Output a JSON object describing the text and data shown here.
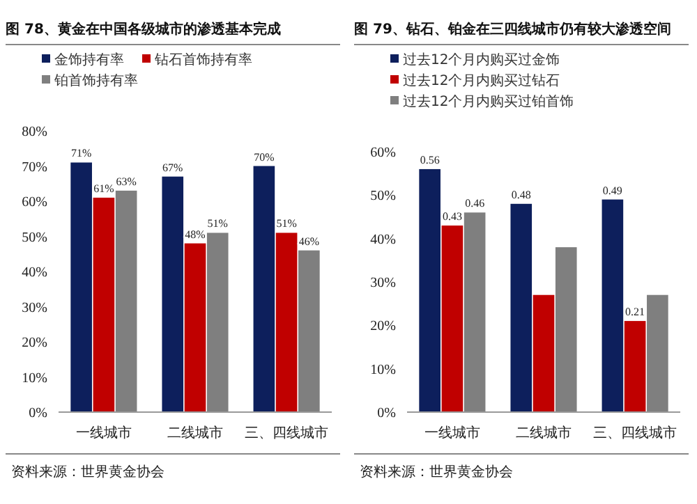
{
  "chart_data": [
    {
      "type": "bar",
      "title": "图 78、黄金在中国各级城市的渗透基本完成",
      "categories": [
        "一线城市",
        "二线城市",
        "三、四线城市"
      ],
      "series": [
        {
          "name": "金饰持有率",
          "color": "#0d1f5c",
          "values": [
            71,
            67,
            70
          ],
          "value_labels": [
            "71%",
            "67%",
            "70%"
          ]
        },
        {
          "name": "钻石首饰持有率",
          "color": "#c00000",
          "values": [
            61,
            48,
            51
          ],
          "value_labels": [
            "61%",
            "48%",
            "51%"
          ]
        },
        {
          "name": "铂首饰持有率",
          "color": "#7f7f7f",
          "values": [
            63,
            51,
            46
          ],
          "value_labels": [
            "63%",
            "51%",
            "46%"
          ]
        }
      ],
      "ylim": [
        0,
        80
      ],
      "yticks": [
        {
          "value": 0,
          "label": "0%"
        },
        {
          "value": 10,
          "label": "10%"
        },
        {
          "value": 20,
          "label": "20%"
        },
        {
          "value": 30,
          "label": "30%"
        },
        {
          "value": 40,
          "label": "40%"
        },
        {
          "value": 50,
          "label": "50%"
        },
        {
          "value": 60,
          "label": "60%"
        },
        {
          "value": 70,
          "label": "70%"
        },
        {
          "value": 80,
          "label": "80%"
        }
      ],
      "legend": "top",
      "grid": false,
      "annotations": [
        "资料来源：世界黄金协会"
      ]
    },
    {
      "type": "bar",
      "title": "图 79、钻石、铂金在三四线城市仍有较大渗透空间",
      "categories": [
        "一线城市",
        "二线城市",
        "三、四线城市"
      ],
      "series": [
        {
          "name": "过去12个月内购买过金饰",
          "color": "#0d1f5c",
          "values": [
            0.56,
            0.48,
            0.49
          ],
          "value_labels": [
            "0.56",
            "0.48",
            "0.49"
          ]
        },
        {
          "name": "过去12个月内购买过钻石",
          "color": "#c00000",
          "values": [
            0.43,
            0.27,
            0.21
          ],
          "value_labels": [
            "0.43",
            null,
            "0.21"
          ]
        },
        {
          "name": "过去12个月内购买过铂首饰",
          "color": "#7f7f7f",
          "values": [
            0.46,
            0.38,
            0.27
          ],
          "value_labels": [
            "0.46",
            null,
            null
          ]
        }
      ],
      "ylim": [
        0,
        0.6
      ],
      "yticks": [
        {
          "value": 0,
          "label": "0%"
        },
        {
          "value": 0.1,
          "label": "10%"
        },
        {
          "value": 0.2,
          "label": "20%"
        },
        {
          "value": 0.3,
          "label": "30%"
        },
        {
          "value": 0.4,
          "label": "40%"
        },
        {
          "value": 0.5,
          "label": "50%"
        },
        {
          "value": 0.6,
          "label": "60%"
        }
      ],
      "legend": "top",
      "grid": false,
      "annotations": [
        "资料来源：世界黄金协会"
      ]
    }
  ]
}
